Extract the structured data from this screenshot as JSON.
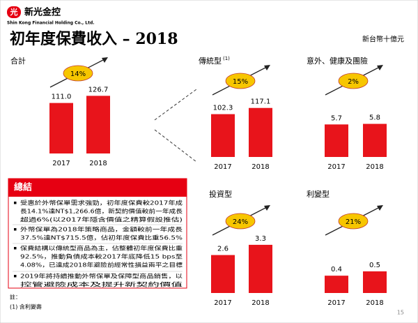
{
  "header": {
    "logo_mark": "光",
    "company": "新光金控",
    "company_en": "Shin Kong Financial Holding Co., Ltd.",
    "title": "初年度保費收入 – 2018",
    "unit": "新台幣十億元"
  },
  "chart_data": [
    {
      "type": "bar",
      "title": "合計",
      "categories": [
        "2017",
        "2018"
      ],
      "values": [
        111.0,
        126.7
      ],
      "value_labels": [
        "111.0",
        "126.7"
      ],
      "growth": "14%",
      "color": "#e8141b",
      "ylim": [
        0,
        138
      ]
    },
    {
      "type": "bar",
      "title": "傳統型",
      "title_note": "(1)",
      "categories": [
        "2017",
        "2018"
      ],
      "values": [
        102.3,
        117.1
      ],
      "value_labels": [
        "102.3",
        "117.1"
      ],
      "growth": "15%",
      "color": "#e8141b",
      "ylim": [
        0,
        150
      ]
    },
    {
      "type": "bar",
      "title": "意外、健康及團險",
      "categories": [
        "2017",
        "2018"
      ],
      "values": [
        5.7,
        5.8
      ],
      "value_labels": [
        "5.7",
        "5.8"
      ],
      "growth": "2%",
      "color": "#e8141b",
      "ylim": [
        0,
        11
      ]
    },
    {
      "type": "bar",
      "title": "投資型",
      "categories": [
        "2017",
        "2018"
      ],
      "values": [
        2.6,
        3.3
      ],
      "value_labels": [
        "2.6",
        "3.3"
      ],
      "growth": "24%",
      "color": "#e8141b",
      "ylim": [
        0,
        4.3
      ]
    },
    {
      "type": "bar",
      "title": "利變型",
      "categories": [
        "2017",
        "2018"
      ],
      "values": [
        0.4,
        0.5
      ],
      "value_labels": [
        "0.4",
        "0.5"
      ],
      "growth": "21%",
      "color": "#e8141b",
      "ylim": [
        0,
        1.45
      ]
    }
  ],
  "summary": {
    "heading": "總結",
    "bullets": [
      [
        "受惠於外幣保單需求強勁，初年度保費較2017年成",
        "長14.1%達NT$1,266.6億，新契約價值較前一年成長",
        "超過6%(以2017年隱含價值之精算假設推估)"
      ],
      [
        "外幣保單為2018年策略商品，金額較前一年成長",
        "37.5%達NT$715.5億，佔初年度保費比重56.5%"
      ],
      [
        "保費結構以傳統型商品為主，佔整體初年度保費比重",
        "92.5%，推動負債成本較2017年底降低15 bps至",
        "4.08%，已達成2018年避險前經常性損益兩平之目標"
      ],
      [
        "2019年將持續推動外幣保單及保障型商品銷售，以",
        "控管避險成本及提升新契約價值"
      ]
    ]
  },
  "footnote": {
    "heading": "註：",
    "items": [
      "(1) 含利變壽"
    ]
  },
  "page_number": "15"
}
